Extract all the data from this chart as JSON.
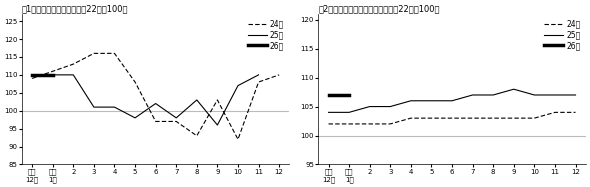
{
  "fig1_title": "図1　農産物価格指数（平成22年＝100）",
  "fig2_title": "図2　農業生産資材価格指数（平成22年＝100）",
  "x_labels": [
    "前年\n12月",
    "当年\n1月",
    "2",
    "3",
    "4",
    "5",
    "6",
    "7",
    "8",
    "9",
    "10",
    "11",
    "12"
  ],
  "fig1_ylim": [
    85,
    127
  ],
  "fig1_yticks": [
    85,
    90,
    95,
    100,
    105,
    110,
    115,
    120,
    125
  ],
  "fig2_ylim": [
    95,
    121
  ],
  "fig2_yticks": [
    95,
    100,
    105,
    110,
    115,
    120
  ],
  "fig1_y24": [
    109,
    111,
    113,
    116,
    116,
    108,
    97,
    97,
    93,
    103,
    92,
    108,
    110
  ],
  "fig1_y25": [
    110,
    110,
    110,
    101,
    101,
    98,
    102,
    98,
    103,
    96,
    107,
    110,
    null
  ],
  "fig1_y26": [
    110,
    110,
    null,
    null,
    null,
    null,
    null,
    null,
    null,
    null,
    null,
    null,
    null
  ],
  "fig2_y24": [
    102,
    102,
    102,
    102,
    103,
    103,
    103,
    103,
    103,
    103,
    103,
    104,
    104
  ],
  "fig2_y25": [
    104,
    104,
    105,
    105,
    106,
    106,
    106,
    107,
    107,
    108,
    107,
    107,
    107
  ],
  "fig2_y26": [
    107,
    107,
    null,
    null,
    null,
    null,
    null,
    null,
    null,
    null,
    null,
    null,
    null
  ],
  "ref_line_color": "#bbbbbb",
  "legend_labels": [
    "24年",
    "25年",
    "26年"
  ]
}
